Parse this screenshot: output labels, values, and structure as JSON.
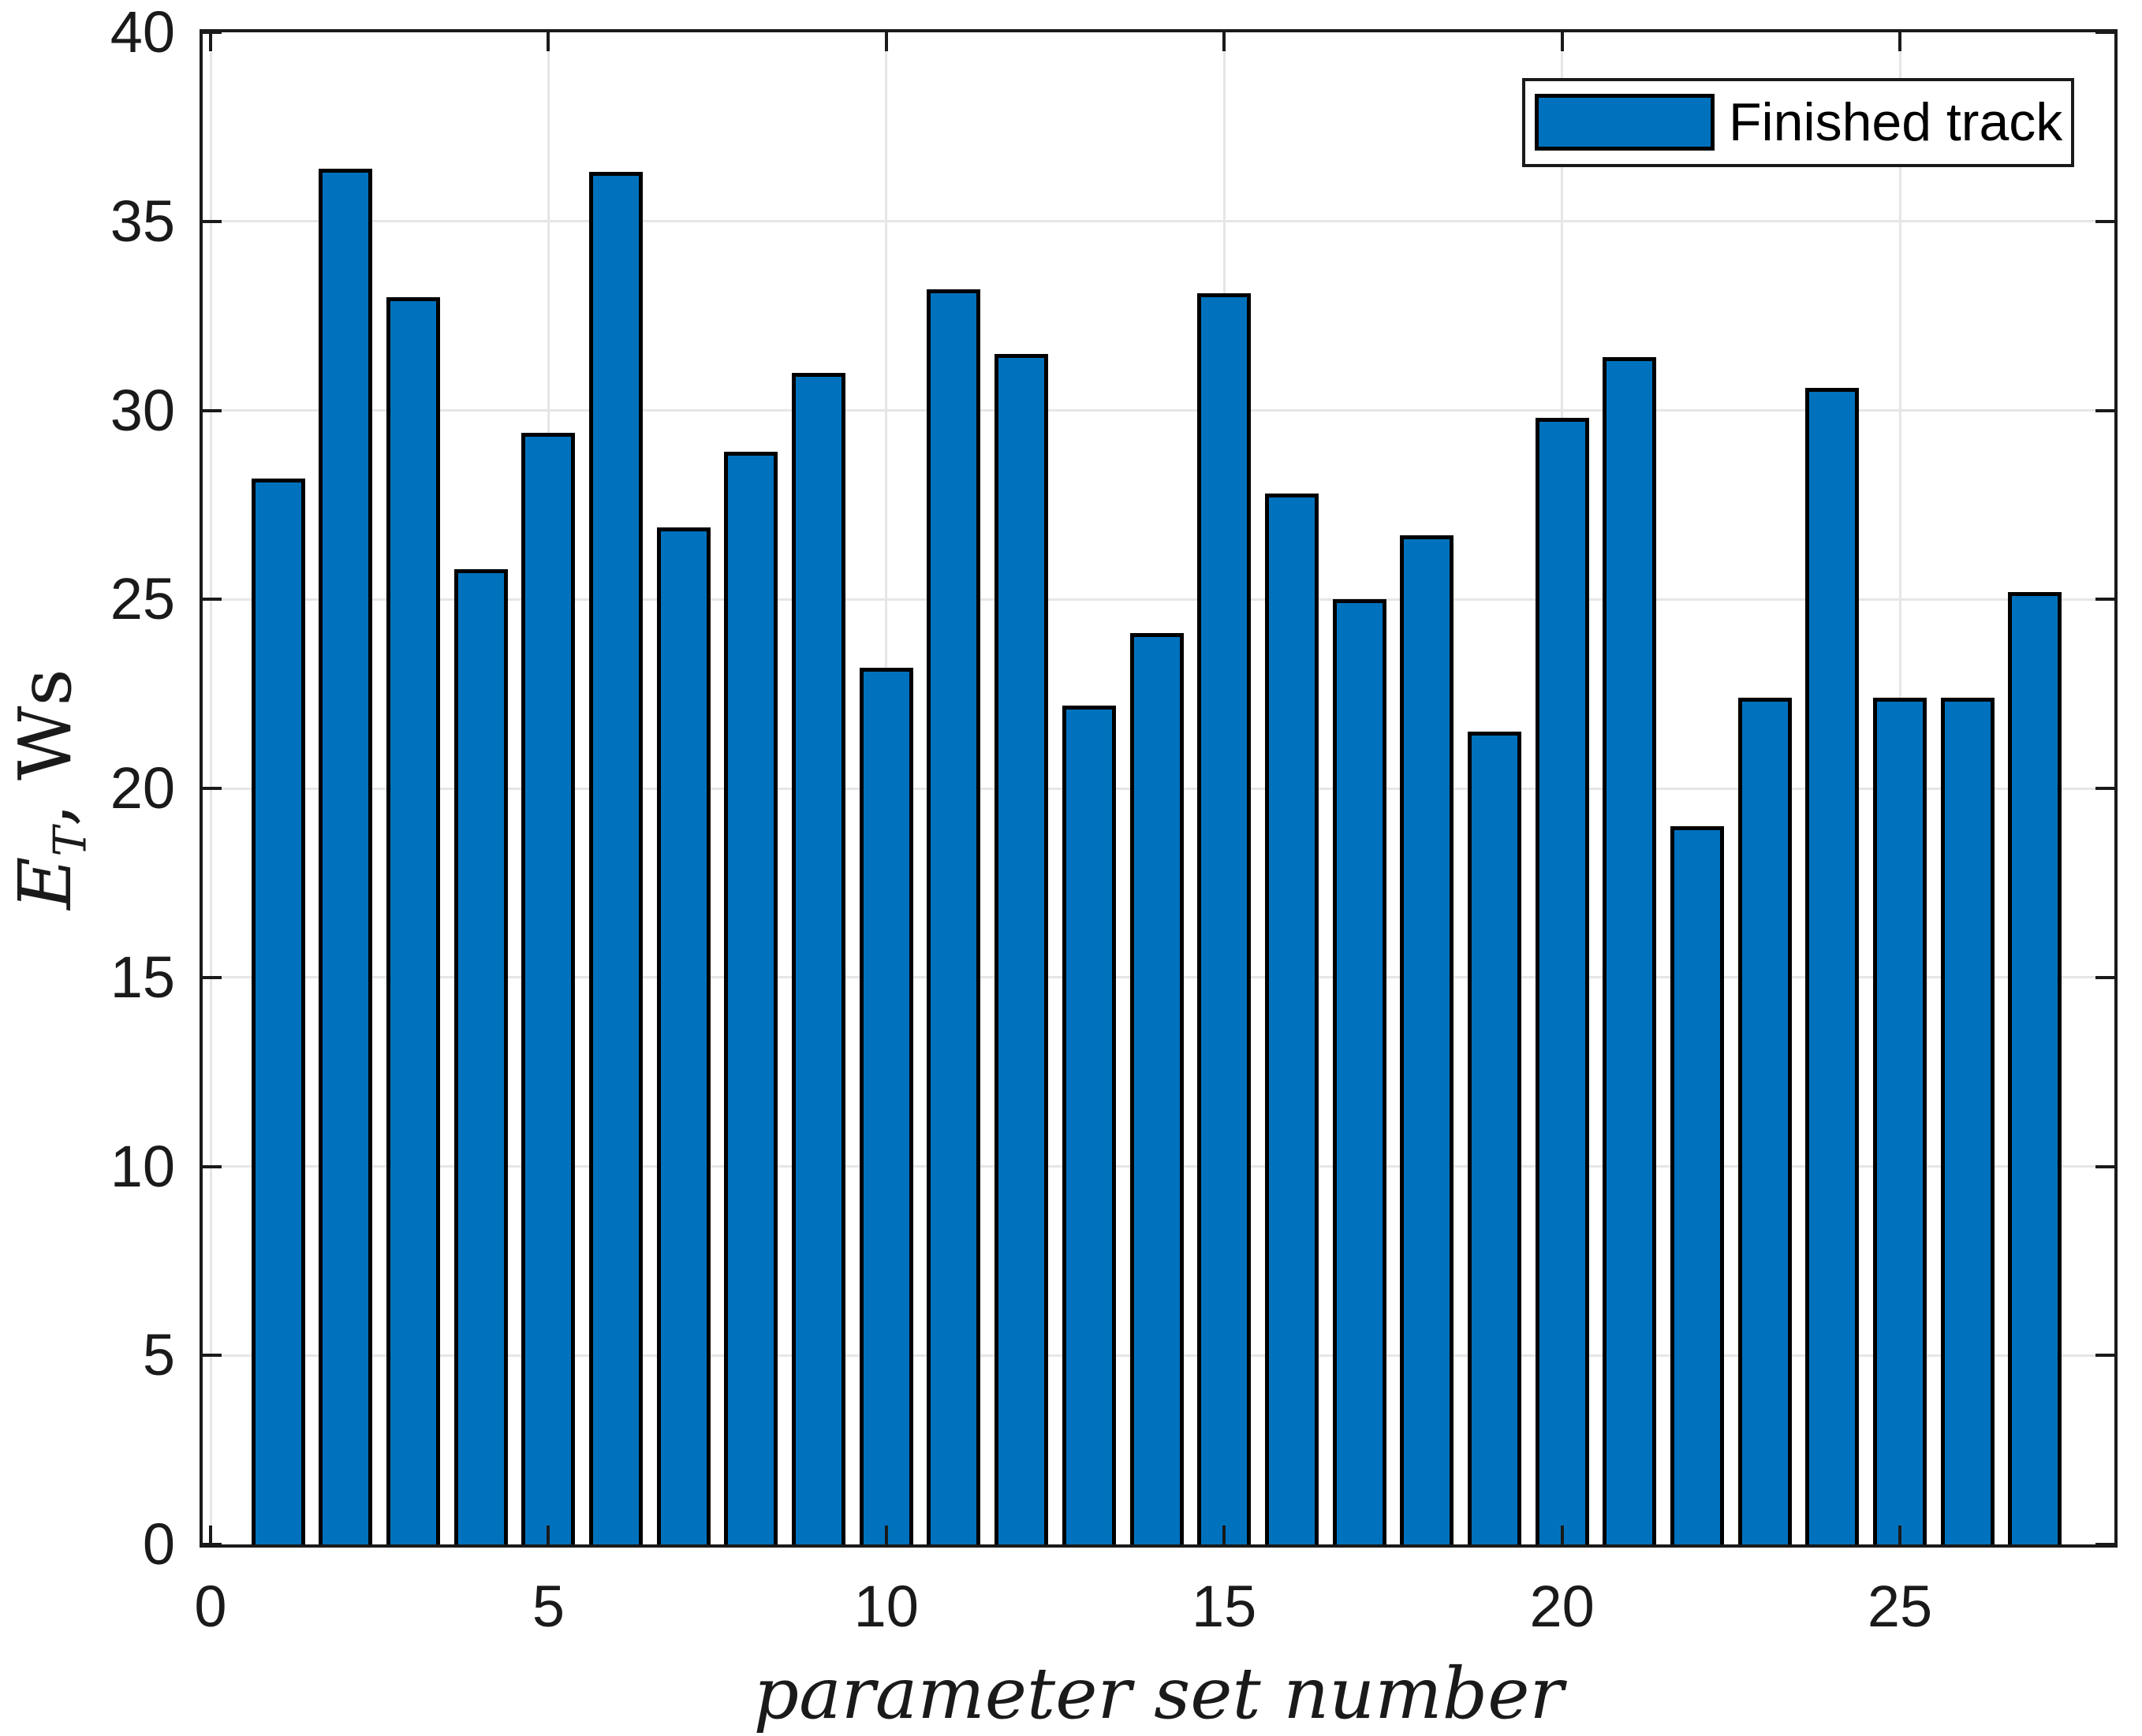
{
  "chart_data": {
    "type": "bar",
    "title": "",
    "xlabel": "parameter set number",
    "ylabel": "E_T, Ws",
    "ylabel_parts": {
      "symbol": "E",
      "subscript": "T",
      "suffix": ", Ws"
    },
    "legend": {
      "entries": [
        "Finished track"
      ],
      "position": "top-right"
    },
    "categories": [
      1,
      2,
      3,
      4,
      5,
      6,
      7,
      8,
      9,
      10,
      11,
      12,
      13,
      14,
      15,
      16,
      17,
      18,
      19,
      20,
      21,
      22,
      23,
      24,
      25,
      26,
      27
    ],
    "values": [
      28.2,
      36.4,
      33.0,
      25.8,
      29.4,
      36.3,
      26.9,
      28.9,
      31.0,
      23.2,
      33.2,
      31.5,
      22.2,
      24.1,
      33.1,
      27.8,
      25.0,
      26.7,
      21.5,
      29.8,
      31.4,
      19.0,
      22.4,
      30.6,
      22.4,
      22.4,
      25.2
    ],
    "series_name": "Finished track",
    "xticks": [
      0,
      5,
      10,
      15,
      20,
      25
    ],
    "yticks": [
      0,
      5,
      10,
      15,
      20,
      25,
      30,
      35,
      40
    ],
    "xlim": [
      -0.16,
      28.13
    ],
    "ylim": [
      0,
      40
    ],
    "grid": true,
    "gridlines_h_at": [
      5,
      10,
      15,
      20,
      25,
      30,
      35
    ],
    "gridlines_v_at": [
      0,
      5,
      10,
      15,
      20,
      25
    ],
    "colors": {
      "bar_fill": "#0072BD",
      "bar_edge": "#000000",
      "grid": "#E6E6E6",
      "axis": "#1A1A1A",
      "background": "#FFFFFF"
    }
  }
}
